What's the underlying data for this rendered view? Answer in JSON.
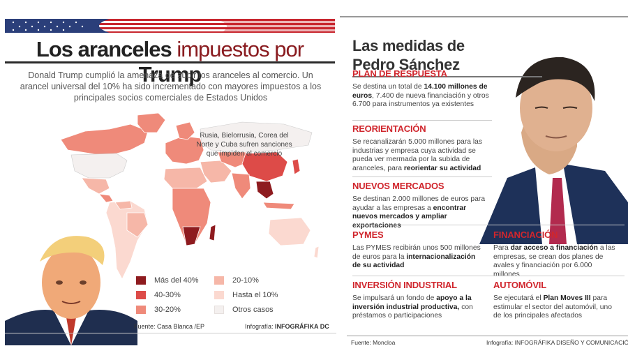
{
  "left": {
    "title_part1": "Los aranceles",
    "title_part2": "impuestos por",
    "title_part3": "Trump",
    "intro": "Donald Trump cumplió la amenaza de subir los aranceles al comercio. Un arancel universal del 10% ha sido incrementado con mayores impuestos a los principales socios comerciales de Estados Unidos",
    "map_note": "Rusia, Bielorrusia, Corea del Norte y Cuba sufren sanciones que impiden el comercio",
    "legend": [
      {
        "label": "Más del 40%",
        "color": "#8e1b1f"
      },
      {
        "label": "40-30%",
        "color": "#dd4b48"
      },
      {
        "label": "30-20%",
        "color": "#ef8a7a"
      },
      {
        "label": "20-10%",
        "color": "#f6b7a8"
      },
      {
        "label": "Hasta el 10%",
        "color": "#fbd9d0"
      },
      {
        "label": "Otros casos",
        "color": "#f4f0ef"
      }
    ],
    "source": "Fuente: Casa Blanca /EP",
    "infografia_label": "Infografía:",
    "infografia_name": "INFOGRÁFIKA DC"
  },
  "right": {
    "title_line1": "Las medidas de",
    "title_line2": "Pedro Sánchez",
    "sections": {
      "plan": {
        "heading": "PLAN DE RESPUESTA",
        "t1": "Se destina un total de ",
        "b1": "14.100 millones de euros",
        "t2": ", 7.400 de nueva financiación y otros 6.700 para instrumentos ya existentes"
      },
      "reorientacion": {
        "heading": "REORIENTACIÓN",
        "t1": "Se recanalizarán 5.000 millones para las industrias y empresa cuya actividad se pueda ver mermada por la subida de aranceles, para ",
        "b1": "reorientar su actividad"
      },
      "mercados": {
        "heading": "NUEVOS MERCADOS",
        "t1": "Se destinan 2.000 millones de euros para ayudar a las empresas a ",
        "b1": "encontrar nuevos mercados y ampliar exportaciones"
      },
      "pymes": {
        "heading": "PYMES",
        "t1": "Las PYMES recibirán unos 500 millones de euros para la ",
        "b1": "internacionalización de su actividad"
      },
      "financiacion": {
        "heading": "FINANCIACIÓN",
        "t1": "Para ",
        "b1": "dar acceso a financiación",
        "t2": " a las empresas, se crean dos planes de avales y financiación por 6.000 millones"
      },
      "industrial": {
        "heading": "INVERSIÓN INDUSTRIAL",
        "t1": "Se impulsará un fondo de ",
        "b1": "apoyo a la inversión industrial productiva,",
        "t2": " con préstamos o participaciones"
      },
      "automovil": {
        "heading": "AUTOMÓVIL",
        "t1": "Se ejecutará el ",
        "b1": "Plan Moves III",
        "t2": " para estimular el sector del automóvil, uno de los principales afectados"
      }
    },
    "source": "Fuente: Moncloa",
    "infografia": "Infografía: INFOGRÁFIKA DISEÑO Y COMUNICACIÓN"
  },
  "colors": {
    "accent_red": "#d0262d",
    "dark_red": "#8a1c20"
  }
}
